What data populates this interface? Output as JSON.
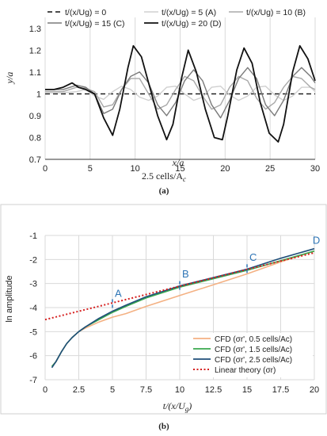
{
  "chart_data": [
    {
      "type": "line",
      "panel_label": "(a)",
      "caption": "2.5 cells/A",
      "caption_sub": "c",
      "xlabel": "x/a",
      "ylabel": "y/a",
      "xlim": [
        0,
        30
      ],
      "ylim": [
        0.7,
        1.35
      ],
      "xticks": [
        0,
        5,
        10,
        15,
        20,
        25,
        30
      ],
      "yticks": [
        0.7,
        0.8,
        0.9,
        1,
        1.1,
        1.2,
        1.3
      ],
      "ytick_labels": [
        "0.7",
        "0.8",
        "0.9",
        "1",
        "1.1",
        "1.2",
        "1.3"
      ],
      "grid": "vertical",
      "legend_position": "top",
      "series": [
        {
          "name": "t/(x/Ug) = 0",
          "color": "#111111",
          "dash": "dashed",
          "x": [
            0,
            30
          ],
          "y": [
            1.0,
            1.0
          ]
        },
        {
          "name": "t/(x/Ug) = 5 (A)",
          "color": "#d0d0d0",
          "dash": "solid",
          "x": [
            0,
            2,
            3.5,
            4.5,
            5.5,
            6.5,
            7.5,
            8.5,
            9.5,
            10.5,
            11.5,
            12.5,
            13.5,
            14.5,
            15.5,
            16.5,
            17.5,
            18.5,
            19.5,
            20.5,
            21.5,
            22.5,
            23.5,
            24.5,
            25.5,
            26.5,
            27.5,
            28.5,
            29.5,
            30
          ],
          "y": [
            1.005,
            1.005,
            1.01,
            1.02,
            0.99,
            0.975,
            1.01,
            1.035,
            1.02,
            0.985,
            0.97,
            0.99,
            1.03,
            1.035,
            1.0,
            0.97,
            0.985,
            1.03,
            1.035,
            0.995,
            0.97,
            0.99,
            1.03,
            1.035,
            0.995,
            0.97,
            0.99,
            1.03,
            1.03,
            1.01
          ]
        },
        {
          "name": "t/(x/Ug) = 10 (B)",
          "color": "#a8a8a8",
          "dash": "solid",
          "x": [
            0,
            2,
            3.5,
            4.5,
            5.5,
            6.5,
            7.5,
            8.5,
            9.5,
            10.5,
            11.5,
            12.5,
            13.5,
            14.5,
            15.5,
            16.5,
            17.5,
            18.5,
            19.5,
            20.5,
            21.5,
            22.5,
            23.5,
            24.5,
            25.5,
            26.5,
            27.5,
            28.5,
            29.5,
            30
          ],
          "y": [
            1.01,
            1.01,
            1.03,
            1.025,
            1.01,
            0.94,
            0.95,
            1.02,
            1.07,
            1.07,
            1.0,
            0.93,
            0.95,
            1.02,
            1.08,
            1.06,
            0.99,
            0.93,
            0.95,
            1.03,
            1.08,
            1.06,
            0.98,
            0.93,
            0.96,
            1.03,
            1.08,
            1.07,
            1.03,
            1.02
          ]
        },
        {
          "name": "t/(x/Ug) = 15 (C)",
          "color": "#7a7a7a",
          "dash": "solid",
          "x": [
            0,
            2,
            3.5,
            4.5,
            5.5,
            6.5,
            7.5,
            8.5,
            9.5,
            10.5,
            11.5,
            12.5,
            13.5,
            14.5,
            15.5,
            16.5,
            17.5,
            18.5,
            19.5,
            20.5,
            21.5,
            22.5,
            23.5,
            24.5,
            25.5,
            26.5,
            27.5,
            28.5,
            29.5,
            30
          ],
          "y": [
            1.02,
            1.02,
            1.04,
            1.03,
            1.0,
            0.91,
            0.93,
            1.02,
            1.08,
            1.1,
            1.05,
            0.95,
            0.9,
            0.96,
            1.06,
            1.11,
            1.06,
            0.95,
            0.89,
            0.97,
            1.07,
            1.12,
            1.07,
            0.95,
            0.9,
            0.97,
            1.08,
            1.12,
            1.08,
            1.05
          ]
        },
        {
          "name": "t/(x/Ug) = 20 (D)",
          "color": "#111111",
          "dash": "solid",
          "x": [
            0,
            1,
            2,
            3,
            3.7,
            4.5,
            5.5,
            6.5,
            7.5,
            8.3,
            9.2,
            9.8,
            10.7,
            11.5,
            12.5,
            13.5,
            14.2,
            15.2,
            15.9,
            16.8,
            17.8,
            18.8,
            19.7,
            20.3,
            21.3,
            22.1,
            23.0,
            23.9,
            24.9,
            25.9,
            26.5,
            27.5,
            28.3,
            29.2,
            30
          ],
          "y": [
            1.02,
            1.02,
            1.03,
            1.05,
            1.03,
            1.02,
            1.0,
            0.89,
            0.81,
            0.93,
            1.12,
            1.22,
            1.17,
            1.05,
            0.9,
            0.79,
            0.86,
            1.08,
            1.2,
            1.1,
            0.93,
            0.8,
            0.79,
            0.9,
            1.11,
            1.21,
            1.14,
            0.96,
            0.82,
            0.78,
            0.86,
            1.1,
            1.22,
            1.16,
            1.06
          ]
        }
      ]
    },
    {
      "type": "line",
      "panel_label": "(b)",
      "xlabel": "t/(x/U",
      "xlabel_sub": "g",
      "xlabel_end": ")",
      "ylabel": "ln amplitude",
      "xlim": [
        0,
        20
      ],
      "ylim": [
        -7,
        -1
      ],
      "xticks": [
        0,
        2.5,
        5,
        7.5,
        10,
        12.5,
        15,
        17.5,
        20
      ],
      "xtick_labels": [
        "0",
        "2.5",
        "5",
        "7.5",
        "10",
        "12.5",
        "15",
        "17.5",
        "20"
      ],
      "yticks": [
        -7,
        -6,
        -5,
        -4,
        -3,
        -2,
        -1
      ],
      "grid": "both",
      "legend_position": "bottom-right",
      "annotations": [
        {
          "text": "A",
          "x": 5,
          "y": -3.55,
          "marker_y": [
            -3.65,
            -4.05
          ]
        },
        {
          "text": "B",
          "x": 10,
          "y": -2.75,
          "marker_y": [
            -2.9,
            -3.35
          ]
        },
        {
          "text": "C",
          "x": 15,
          "y": -2.05,
          "marker_y": [
            -2.2,
            -2.65
          ]
        },
        {
          "text": "D",
          "x": 19.7,
          "y": -1.35,
          "marker_y": []
        }
      ],
      "series": [
        {
          "name": "CFD (σr', 0.5 cells/Ac)",
          "color": "#f4b183",
          "dash": "solid",
          "x": [
            0.5,
            0.8,
            1.2,
            1.6,
            2.0,
            2.5,
            3.0,
            4.0,
            5.0,
            6.0,
            7.5,
            10.0,
            12.5,
            15.0,
            17.5,
            20.0
          ],
          "y": [
            -6.45,
            -6.25,
            -5.85,
            -5.5,
            -5.25,
            -5.0,
            -4.85,
            -4.6,
            -4.4,
            -4.25,
            -3.95,
            -3.5,
            -3.05,
            -2.6,
            -2.1,
            -1.65
          ]
        },
        {
          "name": "CFD (σr', 1.5 cells/Ac)",
          "color": "#3aa84e",
          "dash": "solid",
          "x": [
            0.5,
            0.8,
            1.2,
            1.6,
            2.0,
            2.5,
            3.0,
            4.0,
            5.0,
            6.0,
            7.5,
            10.0,
            12.5,
            15.0,
            17.5,
            20.0
          ],
          "y": [
            -6.45,
            -6.25,
            -5.85,
            -5.5,
            -5.25,
            -5.0,
            -4.8,
            -4.5,
            -4.2,
            -3.95,
            -3.6,
            -3.15,
            -2.8,
            -2.45,
            -2.05,
            -1.65
          ]
        },
        {
          "name": "CFD (σr', 2.5 cells/Ac)",
          "color": "#1f4e79",
          "dash": "solid",
          "x": [
            0.5,
            0.8,
            1.2,
            1.6,
            2.0,
            2.5,
            3.0,
            4.0,
            5.0,
            6.0,
            7.5,
            10.0,
            12.5,
            15.0,
            17.5,
            20.0
          ],
          "y": [
            -6.5,
            -6.25,
            -5.85,
            -5.5,
            -5.25,
            -5.0,
            -4.8,
            -4.45,
            -4.15,
            -3.9,
            -3.55,
            -3.1,
            -2.75,
            -2.4,
            -1.95,
            -1.55
          ]
        },
        {
          "name": "Linear theory (σr)",
          "color": "#d62020",
          "dash": "dotted",
          "x": [
            0,
            20
          ],
          "y": [
            -4.5,
            -1.72
          ]
        }
      ]
    }
  ]
}
